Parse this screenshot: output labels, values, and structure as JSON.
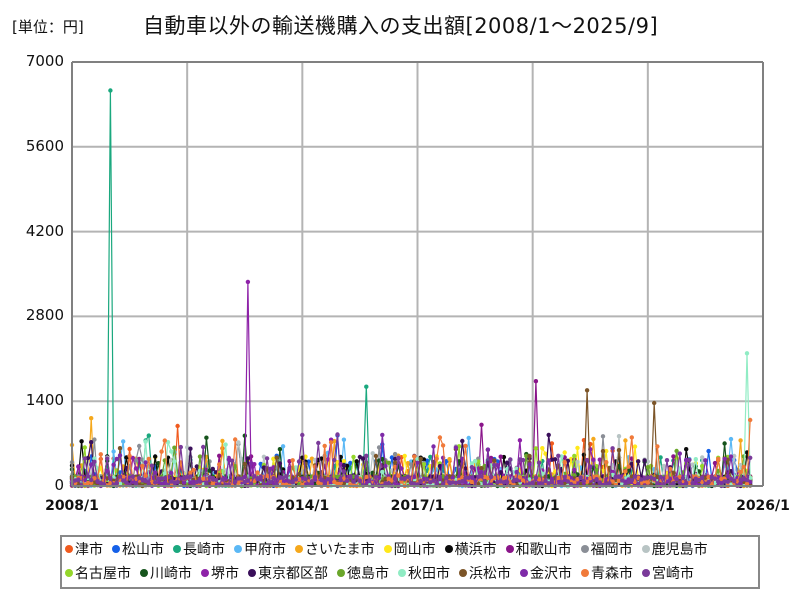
{
  "header": {
    "unit": "[単位：円]",
    "title": "自動車以外の輸送機購入の支出額[2008/1～2025/9]"
  },
  "chart_data": {
    "type": "line",
    "title": "自動車以外の輸送機購入の支出額[2008/1～2025/9]",
    "xlabel": "",
    "ylabel": "[単位：円]",
    "ylim": [
      0,
      7000
    ],
    "yticks": [
      "0",
      "1400",
      "2800",
      "4200",
      "5600",
      "7000"
    ],
    "xticks": [
      "2008/1",
      "2011/1",
      "2014/1",
      "2017/1",
      "2020/1",
      "2023/1",
      "2026/1"
    ],
    "xlim": [
      "2008/1",
      "2026/1"
    ],
    "grid": true,
    "legend_position": "bottom",
    "notable_peaks": [
      {
        "series": "長崎市",
        "x": "2009/1",
        "y": 6530
      },
      {
        "series": "堺市",
        "x": "2012/8",
        "y": 3370
      },
      {
        "series": "長崎市",
        "x": "2015/9",
        "y": 1640
      },
      {
        "series": "和歌山市",
        "x": "2020/2",
        "y": 1730
      },
      {
        "series": "浜松市",
        "x": "2021/6",
        "y": 1580
      },
      {
        "series": "浜松市",
        "x": "2023/3",
        "y": 1370
      },
      {
        "series": "秋田市",
        "x": "2025/8",
        "y": 2190
      },
      {
        "series": "青森市",
        "x": "2025/9",
        "y": 1090
      },
      {
        "series": "さいたま市",
        "x": "2008/7",
        "y": 1120
      },
      {
        "series": "津市",
        "x": "2010/10",
        "y": 990
      },
      {
        "series": "和歌山市",
        "x": "2018/9",
        "y": 1010
      }
    ],
    "series": [
      {
        "name": "津市",
        "color": "#f05a1e"
      },
      {
        "name": "松山市",
        "color": "#1560e8"
      },
      {
        "name": "長崎市",
        "color": "#1aa87e"
      },
      {
        "name": "甲府市",
        "color": "#5bb8f5"
      },
      {
        "name": "さいたま市",
        "color": "#f5a81c"
      },
      {
        "name": "岡山市",
        "color": "#ffe81a"
      },
      {
        "name": "横浜市",
        "color": "#0a0a0a"
      },
      {
        "name": "和歌山市",
        "color": "#8a158a"
      },
      {
        "name": "福岡市",
        "color": "#8a8e96"
      },
      {
        "name": "鹿児島市",
        "color": "#b8c4c4"
      },
      {
        "name": "名古屋市",
        "color": "#94d62a"
      },
      {
        "name": "川崎市",
        "color": "#16541c"
      },
      {
        "name": "堺市",
        "color": "#8e22a8"
      },
      {
        "name": "東京都区部",
        "color": "#3a0f5a"
      },
      {
        "name": "徳島市",
        "color": "#6aa62a"
      },
      {
        "name": "秋田市",
        "color": "#90ecc4"
      },
      {
        "name": "浜松市",
        "color": "#7c5528"
      },
      {
        "name": "金沢市",
        "color": "#7e2aa8"
      },
      {
        "name": "青森市",
        "color": "#f07a3a"
      },
      {
        "name": "宮崎市",
        "color": "#7a3a9a"
      }
    ]
  },
  "legend": {
    "rows": [
      [
        0,
        1,
        2,
        3,
        4,
        5,
        6,
        7,
        8,
        9
      ],
      [
        10,
        11,
        12,
        13,
        14,
        15,
        16,
        17,
        18,
        19
      ]
    ]
  }
}
